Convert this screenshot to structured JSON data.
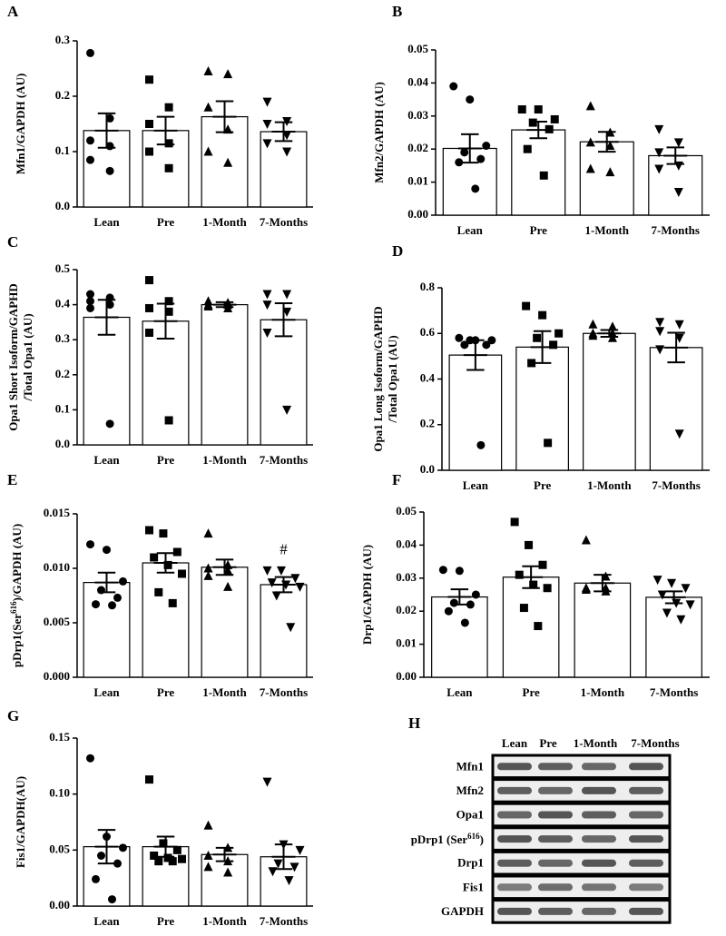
{
  "chart_data": [
    {
      "type": "bar",
      "panel": "A",
      "ylabel": "Mfn1/GAPDH (AU)",
      "categories": [
        "Lean",
        "Pre",
        "1-Month",
        "7-Months"
      ],
      "values": [
        0.138,
        0.138,
        0.163,
        0.136
      ],
      "errors": [
        0.031,
        0.025,
        0.028,
        0.017
      ],
      "points": [
        [
          0.278,
          0.16,
          0.12,
          0.11,
          0.085,
          0.065
        ],
        [
          0.23,
          0.18,
          0.15,
          0.115,
          0.1,
          0.07
        ],
        [
          0.245,
          0.24,
          0.18,
          0.14,
          0.1,
          0.08
        ],
        [
          0.19,
          0.155,
          0.15,
          0.13,
          0.115,
          0.1
        ]
      ],
      "ylim": [
        0,
        0.3
      ],
      "yticks": [
        {
          "value": 0,
          "label": "0.0"
        },
        0.1,
        0.2,
        0.3
      ]
    },
    {
      "type": "bar",
      "panel": "B",
      "ylabel": "Mfn2/GAPDH (AU)",
      "categories": [
        "Lean",
        "Pre",
        "1-Month",
        "7-Months"
      ],
      "values": [
        0.0202,
        0.0258,
        0.0222,
        0.018
      ],
      "errors": [
        0.0043,
        0.0025,
        0.003,
        0.0025
      ],
      "points": [
        [
          0.039,
          0.035,
          0.021,
          0.019,
          0.017,
          0.016,
          0.008
        ],
        [
          0.032,
          0.032,
          0.029,
          0.028,
          0.026,
          0.02,
          0.012
        ],
        [
          0.033,
          0.025,
          0.022,
          0.021,
          0.014,
          0.013
        ],
        [
          0.026,
          0.022,
          0.019,
          0.015,
          0.014,
          0.007
        ]
      ],
      "ylim": [
        0,
        0.05
      ],
      "yticks": [
        {
          "value": 0,
          "label": "0.00"
        },
        0.01,
        0.02,
        0.03,
        0.04,
        0.05
      ]
    },
    {
      "type": "bar",
      "panel": "C",
      "ylabel_lines": [
        "Opa1 Short Isoform/GAPHD",
        "/Total Opa1 (AU)"
      ],
      "categories": [
        "Lean",
        "Pre",
        "1-Month",
        "7-Months"
      ],
      "values": [
        0.364,
        0.353,
        0.4,
        0.357
      ],
      "errors": [
        0.05,
        0.05,
        0.007,
        0.047
      ],
      "points": [
        [
          0.43,
          0.42,
          0.41,
          0.4,
          0.39,
          0.06
        ],
        [
          0.47,
          0.41,
          0.39,
          0.38,
          0.32,
          0.07
        ],
        [
          0.41,
          0.405,
          0.4,
          0.4,
          0.395,
          0.39
        ],
        [
          0.43,
          0.43,
          0.4,
          0.38,
          0.32,
          0.1
        ]
      ],
      "ylim": [
        0,
        0.5
      ],
      "yticks": [
        {
          "value": 0,
          "label": "0.0"
        },
        0.1,
        0.2,
        0.3,
        0.4,
        0.5
      ]
    },
    {
      "type": "bar",
      "panel": "D",
      "ylabel_lines": [
        "Opa1 Long Isoform/GAPHD",
        "/Total Opa1 (AU)"
      ],
      "categories": [
        "Lean",
        "Pre",
        "1-Month",
        "7-Months"
      ],
      "values": [
        0.505,
        0.54,
        0.6,
        0.538
      ],
      "errors": [
        0.065,
        0.07,
        0.015,
        0.065
      ],
      "points": [
        [
          0.58,
          0.57,
          0.57,
          0.57,
          0.55,
          0.55,
          0.11
        ],
        [
          0.72,
          0.68,
          0.6,
          0.58,
          0.55,
          0.47,
          0.12
        ],
        [
          0.64,
          0.63,
          0.6,
          0.6,
          0.59,
          0.58
        ],
        [
          0.65,
          0.64,
          0.61,
          0.58,
          0.53,
          0.16
        ]
      ],
      "ylim": [
        0,
        0.8
      ],
      "yticks": [
        {
          "value": 0,
          "label": "0.0"
        },
        0.2,
        0.4,
        0.6,
        0.8
      ]
    },
    {
      "type": "bar",
      "panel": "E",
      "ylabel_parts": [
        "pDrp1(Ser",
        "616",
        ")/GAPDH (AU)"
      ],
      "superscript_part": 1,
      "categories": [
        "Lean",
        "Pre",
        "1-Month",
        "7-Months"
      ],
      "values": [
        0.0087,
        0.0105,
        0.0101,
        0.0085
      ],
      "errors": [
        0.0009,
        0.0009,
        0.0007,
        0.0007
      ],
      "points": [
        [
          0.0122,
          0.0117,
          0.0088,
          0.008,
          0.0073,
          0.0067,
          0.0066
        ],
        [
          0.0135,
          0.0132,
          0.0115,
          0.011,
          0.0103,
          0.0095,
          0.0078,
          0.0068
        ],
        [
          0.0132,
          0.0103,
          0.01,
          0.0098,
          0.0093,
          0.0083
        ],
        [
          0.0098,
          0.0098,
          0.0091,
          0.0087,
          0.0085,
          0.0083,
          0.0075,
          0.0046
        ]
      ],
      "annotation": "#",
      "annotation_category": "7-Months",
      "ylim": [
        0,
        0.015
      ],
      "yticks": [
        {
          "value": 0,
          "label": "0.000"
        },
        0.005,
        {
          "value": 0.01,
          "label": "0.010"
        },
        0.015
      ]
    },
    {
      "type": "bar",
      "panel": "F",
      "ylabel": "Drp1/GAPDH (AU)",
      "categories": [
        "Lean",
        "Pre",
        "1-Month",
        "7-Months"
      ],
      "values": [
        0.0243,
        0.0303,
        0.0285,
        0.0242
      ],
      "errors": [
        0.0023,
        0.0033,
        0.0025,
        0.0018
      ],
      "points": [
        [
          0.0325,
          0.0322,
          0.025,
          0.0225,
          0.022,
          0.02,
          0.0165
        ],
        [
          0.047,
          0.04,
          0.034,
          0.031,
          0.028,
          0.027,
          0.021,
          0.0155
        ],
        [
          0.0415,
          0.0305,
          0.027,
          0.027,
          0.0265,
          0.026
        ],
        [
          0.0295,
          0.0285,
          0.027,
          0.025,
          0.0225,
          0.022,
          0.0195,
          0.0175
        ]
      ],
      "ylim": [
        0,
        0.05
      ],
      "yticks": [
        {
          "value": 0,
          "label": "0.00"
        },
        0.01,
        0.02,
        0.03,
        0.04,
        0.05
      ]
    },
    {
      "type": "bar",
      "panel": "G",
      "ylabel": "Fis1/GAPDH(AU)",
      "categories": [
        "Lean",
        "Pre",
        "1-Month",
        "7-Months"
      ],
      "values": [
        0.053,
        0.053,
        0.046,
        0.044
      ],
      "errors": [
        0.015,
        0.009,
        0.006,
        0.011
      ],
      "points": [
        [
          0.132,
          0.062,
          0.052,
          0.045,
          0.038,
          0.024,
          0.006
        ],
        [
          0.113,
          0.056,
          0.05,
          0.045,
          0.043,
          0.042,
          0.04,
          0.04
        ],
        [
          0.072,
          0.052,
          0.045,
          0.04,
          0.035,
          0.03
        ],
        [
          0.111,
          0.055,
          0.05,
          0.038,
          0.035,
          0.031,
          0.023
        ]
      ],
      "ylim": [
        0,
        0.15
      ],
      "yticks": [
        {
          "value": 0,
          "label": "0.00"
        },
        0.05,
        {
          "value": 0.1,
          "label": "0.10"
        },
        0.15
      ]
    }
  ],
  "blot": {
    "panel": "H",
    "columns": [
      "Lean",
      "Pre",
      "1-Month",
      "7-Months"
    ],
    "rows": [
      {
        "label": "Mfn1"
      },
      {
        "label": "Mfn2"
      },
      {
        "label": "Opa1"
      },
      {
        "label_parts": [
          "pDrp1 (Ser",
          "616",
          ")"
        ]
      },
      {
        "label": "Drp1"
      },
      {
        "label": "Fis1"
      },
      {
        "label": "GAPDH"
      }
    ]
  },
  "markers": [
    "circle",
    "square",
    "triangle",
    "triangle-down"
  ],
  "bar_color": "#ffffff",
  "mark_color": "#000000"
}
